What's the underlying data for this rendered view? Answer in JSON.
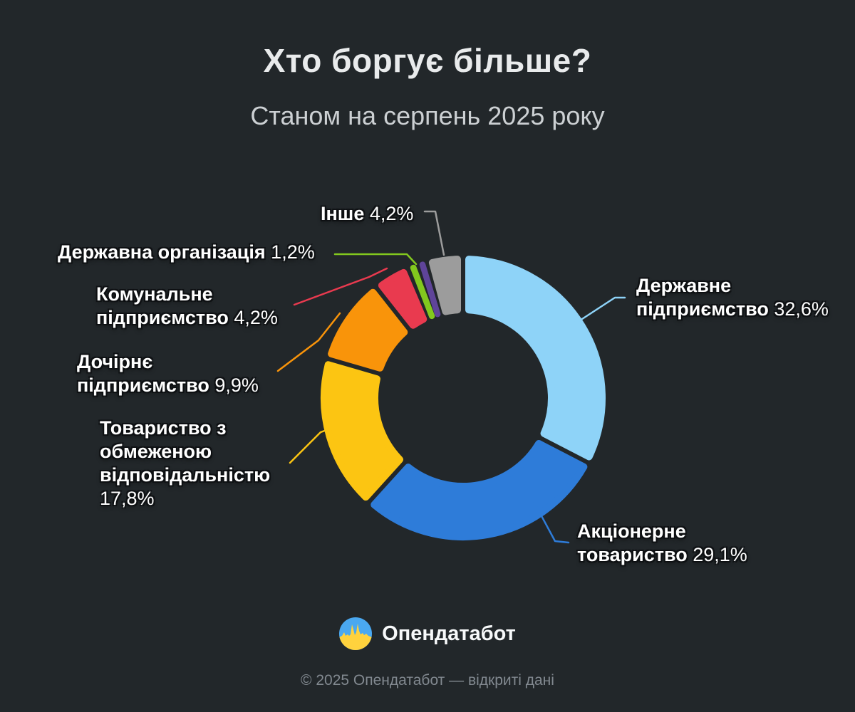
{
  "title": "Хто боргує більше?",
  "subtitle": "Станом на серпень 2025 року",
  "footer": {
    "brand": "Опендатабот",
    "copyright": "© 2025 Опендатабот — відкриті дані"
  },
  "colors": {
    "background": "#22272a",
    "title": "#e9ebec",
    "subtitle": "#ccd0d3",
    "label_text": "#ffffff",
    "copyright": "#828990",
    "logo_blue": "#4aa8f0",
    "logo_yellow": "#ffd23d"
  },
  "chart_data": {
    "type": "pie",
    "variant": "donut",
    "unit": "%",
    "title": "Хто боргує більше?",
    "legend_position": "callout-labels",
    "segments": [
      {
        "label": "Державне підприємство",
        "value": 32.6,
        "display": "32,6%",
        "color": "#8ed3f8"
      },
      {
        "label": "Акціонерне товариство",
        "value": 29.1,
        "display": "29,1%",
        "color": "#2e7cd9"
      },
      {
        "label": "Товариство з обмеженою відповідальністю",
        "value": 17.8,
        "display": "17,8%",
        "color": "#fcc512"
      },
      {
        "label": "Дочірнє підприємство",
        "value": 9.9,
        "display": "9,9%",
        "color": "#f9940a"
      },
      {
        "label": "Комунальне підприємство",
        "value": 4.2,
        "display": "4,2%",
        "color": "#e93a4f"
      },
      {
        "label": "Державна організація",
        "value": 1.2,
        "display": "1,2%",
        "color": "#82c81e"
      },
      {
        "label": "",
        "value": 1.0,
        "display": "",
        "color": "#5f4499"
      },
      {
        "label": "Інше",
        "value": 4.2,
        "display": "4,2%",
        "color": "#9c9c9c"
      }
    ]
  }
}
